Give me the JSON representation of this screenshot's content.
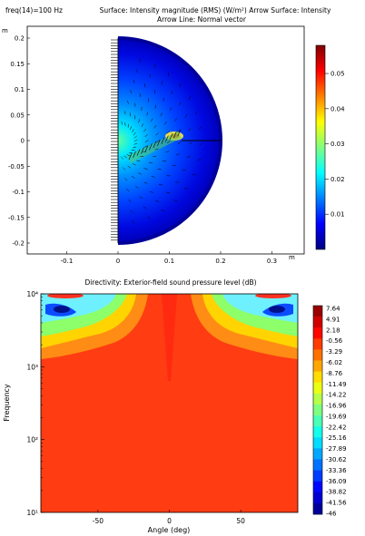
{
  "plot1": {
    "freq_label": "freq(14)=100 Hz",
    "title_line1": "Surface: Intensity magnitude (RMS) (W/m²)  Arrow Surface: Intensity",
    "title_line2": "Arrow Line: Normal vector",
    "x_unit": "m",
    "y_unit": "m"
  },
  "plot2": {
    "title": "Directivity: Exterior-field sound pressure level (dB)",
    "xlabel": "Angle (deg)",
    "ylabel": "Frequency"
  },
  "colors": {
    "jet": [
      "#00007f",
      "#0000ff",
      "#007fff",
      "#00ffff",
      "#7fff7f",
      "#ffff00",
      "#ff7f00",
      "#ff0000",
      "#7f0000"
    ],
    "background": "#ffffff"
  },
  "chart_data": [
    {
      "type": "heatmap",
      "title": "Surface: Intensity magnitude (RMS) (W/m²)  Arrow Surface: Intensity",
      "subtitle": "Arrow Line: Normal vector",
      "annotation": "freq(14)=100 Hz",
      "xlim": [
        -0.2,
        0.34
      ],
      "ylim": [
        -0.22,
        0.22
      ],
      "x_ticks": [
        -0.1,
        0,
        0.1,
        0.2,
        0.3
      ],
      "y_ticks": [
        -0.2,
        -0.15,
        -0.1,
        -0.05,
        0,
        0.05,
        0.1,
        0.15,
        0.2
      ],
      "x_tick_labels": [
        "-0.1",
        "0",
        "0.1",
        "0.2",
        "0.3"
      ],
      "y_tick_labels": [
        "-0.2",
        "-0.15",
        "-0.1",
        "-0.05",
        "0",
        "0.05",
        "0.1",
        "0.15",
        "0.2"
      ],
      "domain_radius": 0.2,
      "colorbar": {
        "min": 0,
        "max": 0.058,
        "ticks": [
          0.01,
          0.02,
          0.03,
          0.04,
          0.05
        ],
        "tick_labels": [
          "0.01",
          "0.02",
          "0.03",
          "0.04",
          "0.05"
        ]
      },
      "grid": false
    },
    {
      "type": "heatmap",
      "title": "Directivity: Exterior-field sound pressure level (dB)",
      "xlabel": "Angle (deg)",
      "ylabel": "Frequency",
      "xlim": [
        -90,
        90
      ],
      "ylim": [
        10,
        10000
      ],
      "y_scale": "log",
      "x_ticks": [
        -50,
        0,
        50
      ],
      "x_tick_labels": [
        "-50",
        "0",
        "50"
      ],
      "y_ticks": [
        10,
        100,
        1000,
        10000
      ],
      "y_tick_labels": [
        "10¹",
        "10²",
        "10³",
        "10⁴"
      ],
      "colorbar": {
        "min": -46,
        "max": 7.64,
        "tick_labels": [
          "7.64",
          "4.91",
          "2.18",
          "-0.56",
          "-3.29",
          "-6.02",
          "-8.76",
          "-11.49",
          "-14.22",
          "-16.96",
          "-19.69",
          "-22.42",
          "-25.16",
          "-27.89",
          "-30.62",
          "-33.36",
          "-36.09",
          "-38.82",
          "-41.56",
          "-46"
        ]
      },
      "grid": false
    }
  ]
}
